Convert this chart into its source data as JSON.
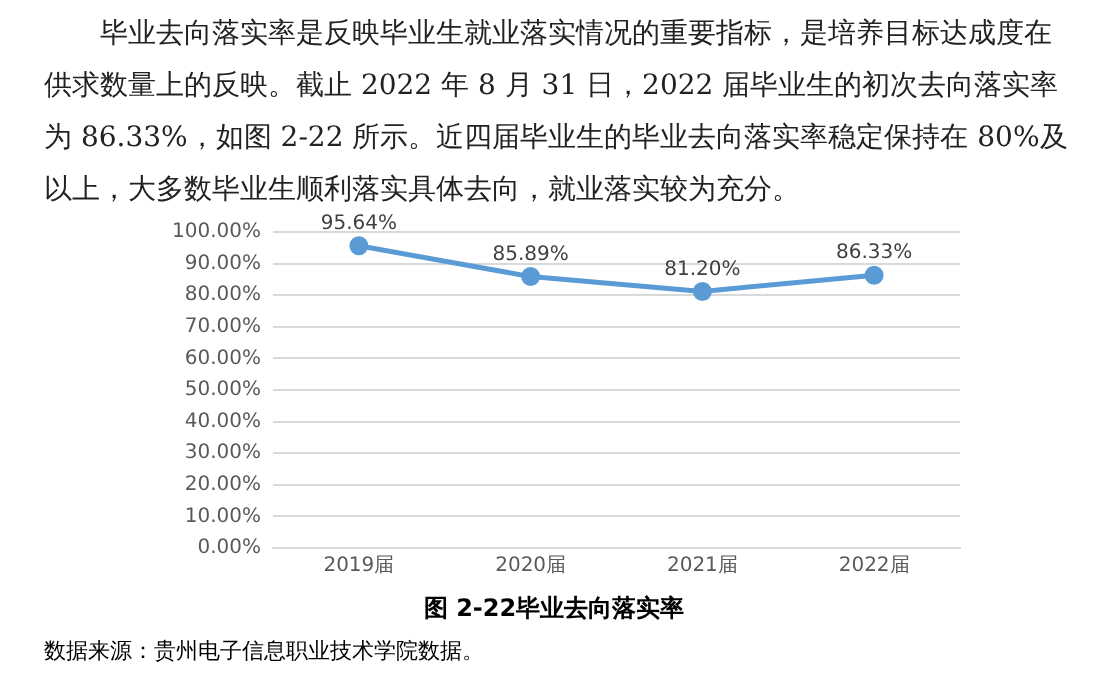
{
  "chart_data": {
    "type": "line",
    "title": "图 2-22毕业去向落实率",
    "annotations": [
      "毕业去向落实率是反映毕业生就业落实情况的重要指标，是培养目标达成度在供求数量上的反映。截止 2022 年 8 月 31 日，2022 届毕业生的初次去向落实率为 86.33%，如图 2-22 所示。近四届毕业生的毕业去向落实率稳定保持在 80%及以上，大多数毕业生顺利落实具体去向，就业落实较为充分。",
      "数据来源：贵州电子信息职业技术学院数据。"
    ],
    "categories": [
      "2019届",
      "2020届",
      "2021届",
      "2022届"
    ],
    "series": [
      {
        "color": "#5b9bd5",
        "values": [
          95.64,
          85.89,
          81.2,
          86.33
        ],
        "value_labels": [
          "95.64%",
          "85.89%",
          "81.20%",
          "86.33%"
        ]
      }
    ],
    "ylim": [
      0,
      100
    ],
    "yticks": [
      {
        "value": 0,
        "label": "0.00%"
      },
      {
        "value": 10,
        "label": "10.00%"
      },
      {
        "value": 20,
        "label": "20.00%"
      },
      {
        "value": 30,
        "label": "30.00%"
      },
      {
        "value": 40,
        "label": "40.00%"
      },
      {
        "value": 50,
        "label": "50.00%"
      },
      {
        "value": 60,
        "label": "60.00%"
      },
      {
        "value": 70,
        "label": "70.00%"
      },
      {
        "value": 80,
        "label": "80.00%"
      },
      {
        "value": 90,
        "label": "90.00%"
      },
      {
        "value": 100,
        "label": "100.00%"
      }
    ],
    "grid": "y",
    "marker": "circle",
    "line_style": "solid",
    "legend": false
  }
}
